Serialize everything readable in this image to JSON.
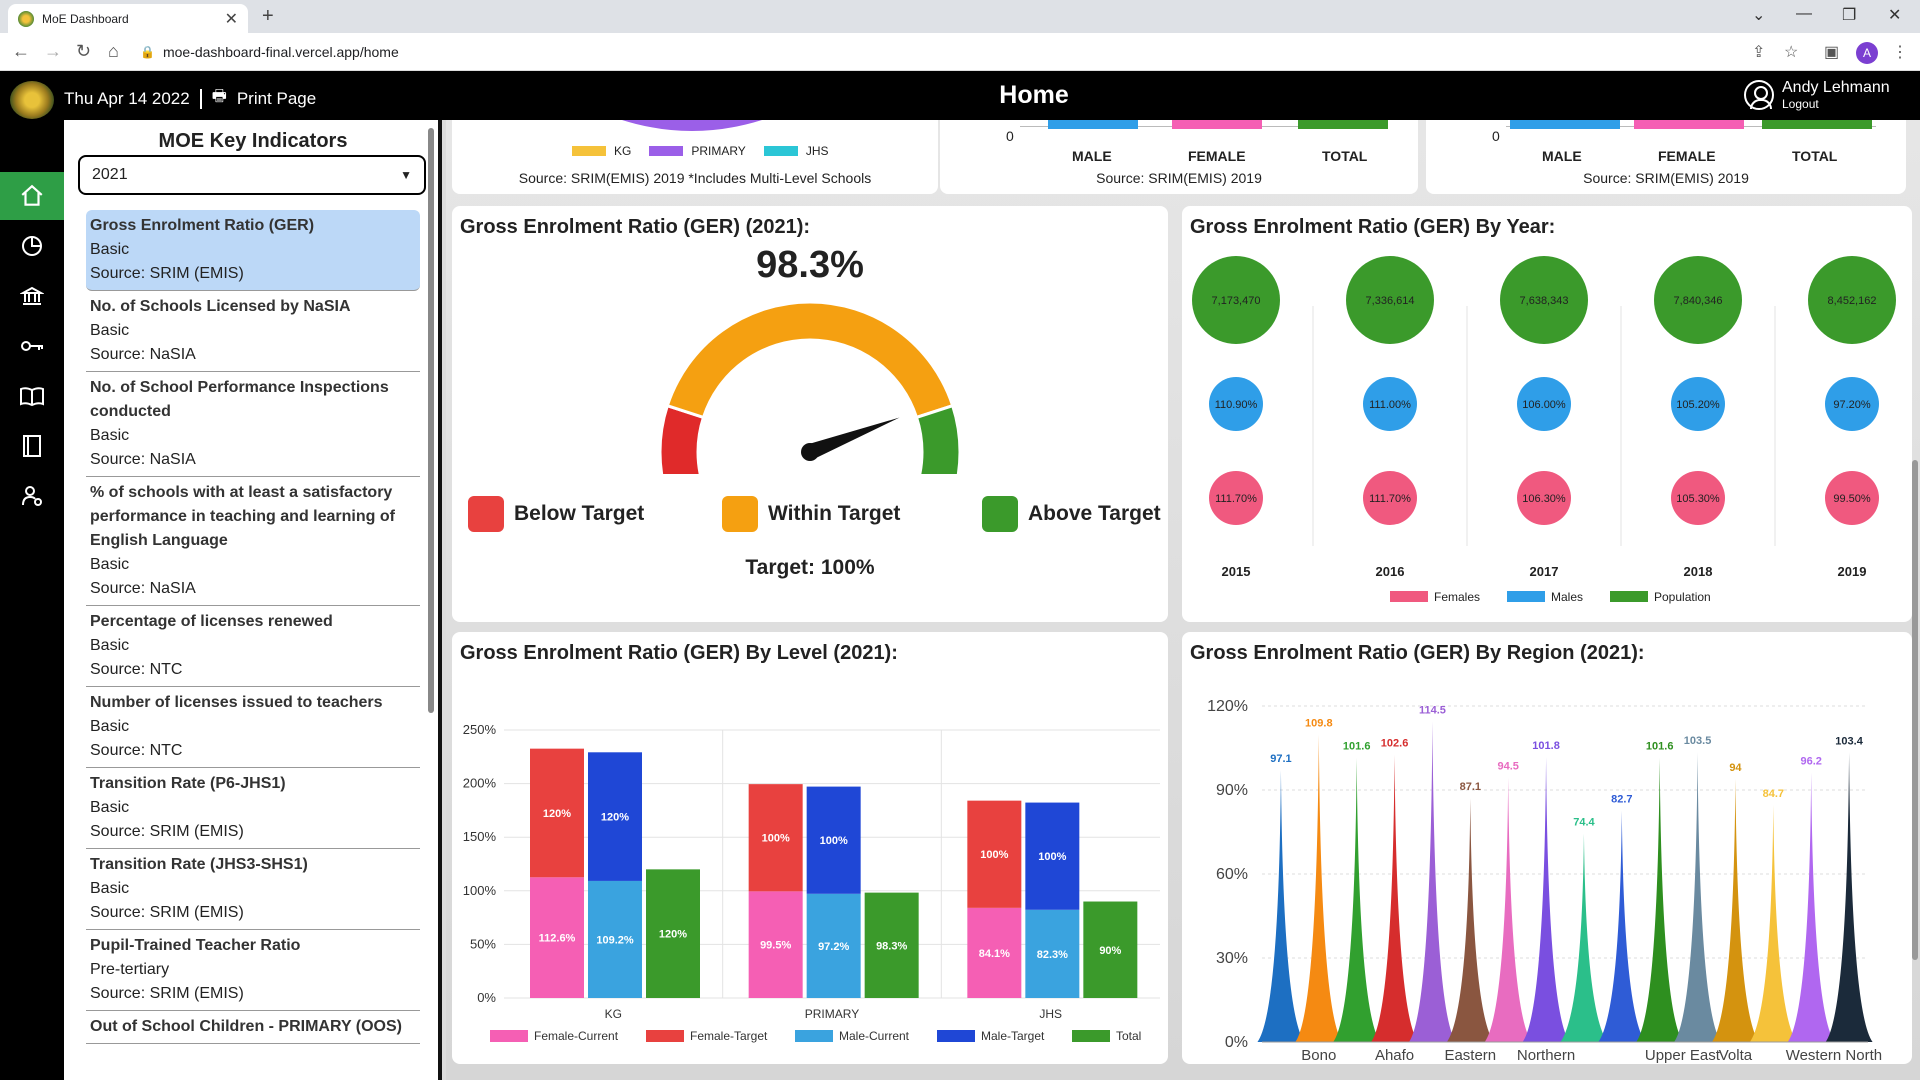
{
  "browser": {
    "tab_title": "MoE Dashboard",
    "url": "moe-dashboard-final.vercel.app/home",
    "profile_initial": "A"
  },
  "header": {
    "date": "Thu Apr 14 2022",
    "print_label": "Print Page",
    "title": "Home",
    "user_name": "Andy Lehmann",
    "logout_label": "Logout"
  },
  "rail": [
    "home-icon",
    "pie-chart-icon",
    "institution-icon",
    "key-icon",
    "book-open-icon",
    "notebook-icon",
    "user-settings-icon"
  ],
  "sidebar": {
    "title": "MOE Key Indicators",
    "year": "2021",
    "items": [
      {
        "name": "Gross Enrolment Ratio (GER)",
        "level": "Basic",
        "source": "Source: SRIM (EMIS)"
      },
      {
        "name": "No. of Schools Licensed by NaSIA",
        "level": "Basic",
        "source": "Source: NaSIA"
      },
      {
        "name": "No. of School Performance Inspections conducted",
        "level": "Basic",
        "source": "Source: NaSIA"
      },
      {
        "name": "% of schools with at least a satisfactory performance in teaching and learning of English Language",
        "level": "Basic",
        "source": "Source: NaSIA"
      },
      {
        "name": "Percentage of licenses renewed",
        "level": "Basic",
        "source": "Source: NTC"
      },
      {
        "name": "Number of licenses issued to teachers",
        "level": "Basic",
        "source": "Source: NTC"
      },
      {
        "name": "Transition Rate (P6-JHS1)",
        "level": "Basic",
        "source": "Source: SRIM (EMIS)"
      },
      {
        "name": "Transition Rate (JHS3-SHS1)",
        "level": "Basic",
        "source": "Source: SRIM (EMIS)"
      },
      {
        "name": "Pupil-Trained Teacher Ratio",
        "level": "Pre-tertiary",
        "source": "Source: SRIM (EMIS)"
      },
      {
        "name": "Out of School Children - PRIMARY (OOS)",
        "level": "",
        "source": ""
      }
    ]
  },
  "top_cards": {
    "card1": {
      "legend": [
        "KG",
        "PRIMARY",
        "JHS"
      ],
      "source": "Source: SRIM(EMIS) 2019 *Includes Multi-Level Schools"
    },
    "card2": {
      "zero": "0",
      "labels": [
        "MALE",
        "FEMALE",
        "TOTAL"
      ],
      "source": "Source: SRIM(EMIS) 2019"
    },
    "card3": {
      "zero": "0",
      "labels": [
        "MALE",
        "FEMALE",
        "TOTAL"
      ],
      "source": "Source: SRIM(EMIS) 2019"
    }
  },
  "gauge": {
    "title": "Gross Enrolment Ratio (GER) (2021):",
    "value_text": "98.3%",
    "value": 98.3,
    "legend": [
      "Below Target",
      "Within Target",
      "Above Target"
    ],
    "target_text": "Target: 100%",
    "colors": {
      "below": "#e02a2a",
      "within": "#f5a011",
      "above": "#3b9a2b"
    }
  },
  "chart_data": [
    {
      "type": "scatter",
      "title": "Gross Enrolment Ratio (GER) By Year:",
      "x": [
        "2015",
        "2016",
        "2017",
        "2018",
        "2019"
      ],
      "series": [
        {
          "name": "Population",
          "color": "#3b9a2b",
          "labels": [
            "7,173,470",
            "7,336,614",
            "7,638,343",
            "7,840,346",
            "8,452,162"
          ]
        },
        {
          "name": "Males",
          "color": "#2f9ee8",
          "labels": [
            "110.90%",
            "111.00%",
            "106.00%",
            "105.20%",
            "97.20%"
          ]
        },
        {
          "name": "Females",
          "color": "#f0597f",
          "labels": [
            "111.70%",
            "111.70%",
            "106.30%",
            "105.30%",
            "99.50%"
          ]
        }
      ],
      "legend": [
        "Females",
        "Males",
        "Population"
      ]
    },
    {
      "type": "bar",
      "title": "Gross Enrolment Ratio (GER) By Level (2021):",
      "categories": [
        "KG",
        "PRIMARY",
        "JHS"
      ],
      "ylim": [
        0,
        250
      ],
      "yticks": [
        "0%",
        "50%",
        "100%",
        "150%",
        "200%",
        "250%"
      ],
      "series": [
        {
          "name": "Female-Current",
          "color": "#f55fb4",
          "values": [
            112.6,
            99.5,
            84.1
          ],
          "labels": [
            "112.6%",
            "99.5%",
            "84.1%"
          ]
        },
        {
          "name": "Female-Target",
          "color": "#e8413f",
          "values": [
            120,
            100,
            100
          ],
          "labels": [
            "120%",
            "100%",
            "100%"
          ]
        },
        {
          "name": "Male-Current",
          "color": "#3aa3df",
          "values": [
            109.2,
            97.2,
            82.3
          ],
          "labels": [
            "109.2%",
            "97.2%",
            "82.3%"
          ]
        },
        {
          "name": "Male-Target",
          "color": "#1f47d6",
          "values": [
            120,
            100,
            100
          ],
          "labels": [
            "120%",
            "100%",
            "100%"
          ]
        },
        {
          "name": "Total",
          "color": "#3b9a2b",
          "values": [
            120,
            98.3,
            90
          ],
          "labels": [
            "120%",
            "98.3%",
            "90%"
          ]
        }
      ]
    },
    {
      "type": "area",
      "title": "Gross Enrolment Ratio (GER) By Region (2021):",
      "ylim": [
        0,
        120
      ],
      "yticks": [
        "0%",
        "30%",
        "60%",
        "90%",
        "120%"
      ],
      "values": [
        97.1,
        109.8,
        101.6,
        102.6,
        114.5,
        87.1,
        94.5,
        101.8,
        74.4,
        82.7,
        101.6,
        103.5,
        94,
        84.7,
        96.2,
        103.4
      ],
      "colors": [
        "#1d6fc2",
        "#f58a12",
        "#31a02f",
        "#d62d2d",
        "#9b5fd6",
        "#8a5640",
        "#e86cc0",
        "#7a4fe0",
        "#2bbf8a",
        "#2f5cd6",
        "#2e8f1f",
        "#6a8aa0",
        "#d4930f",
        "#f5c23a",
        "#b067f0",
        "#1b2a3a"
      ],
      "xlabels": [
        "Bono",
        "Ahafo",
        "Eastern",
        "Northern",
        "Upper East",
        "Volta",
        "Western North"
      ]
    }
  ]
}
